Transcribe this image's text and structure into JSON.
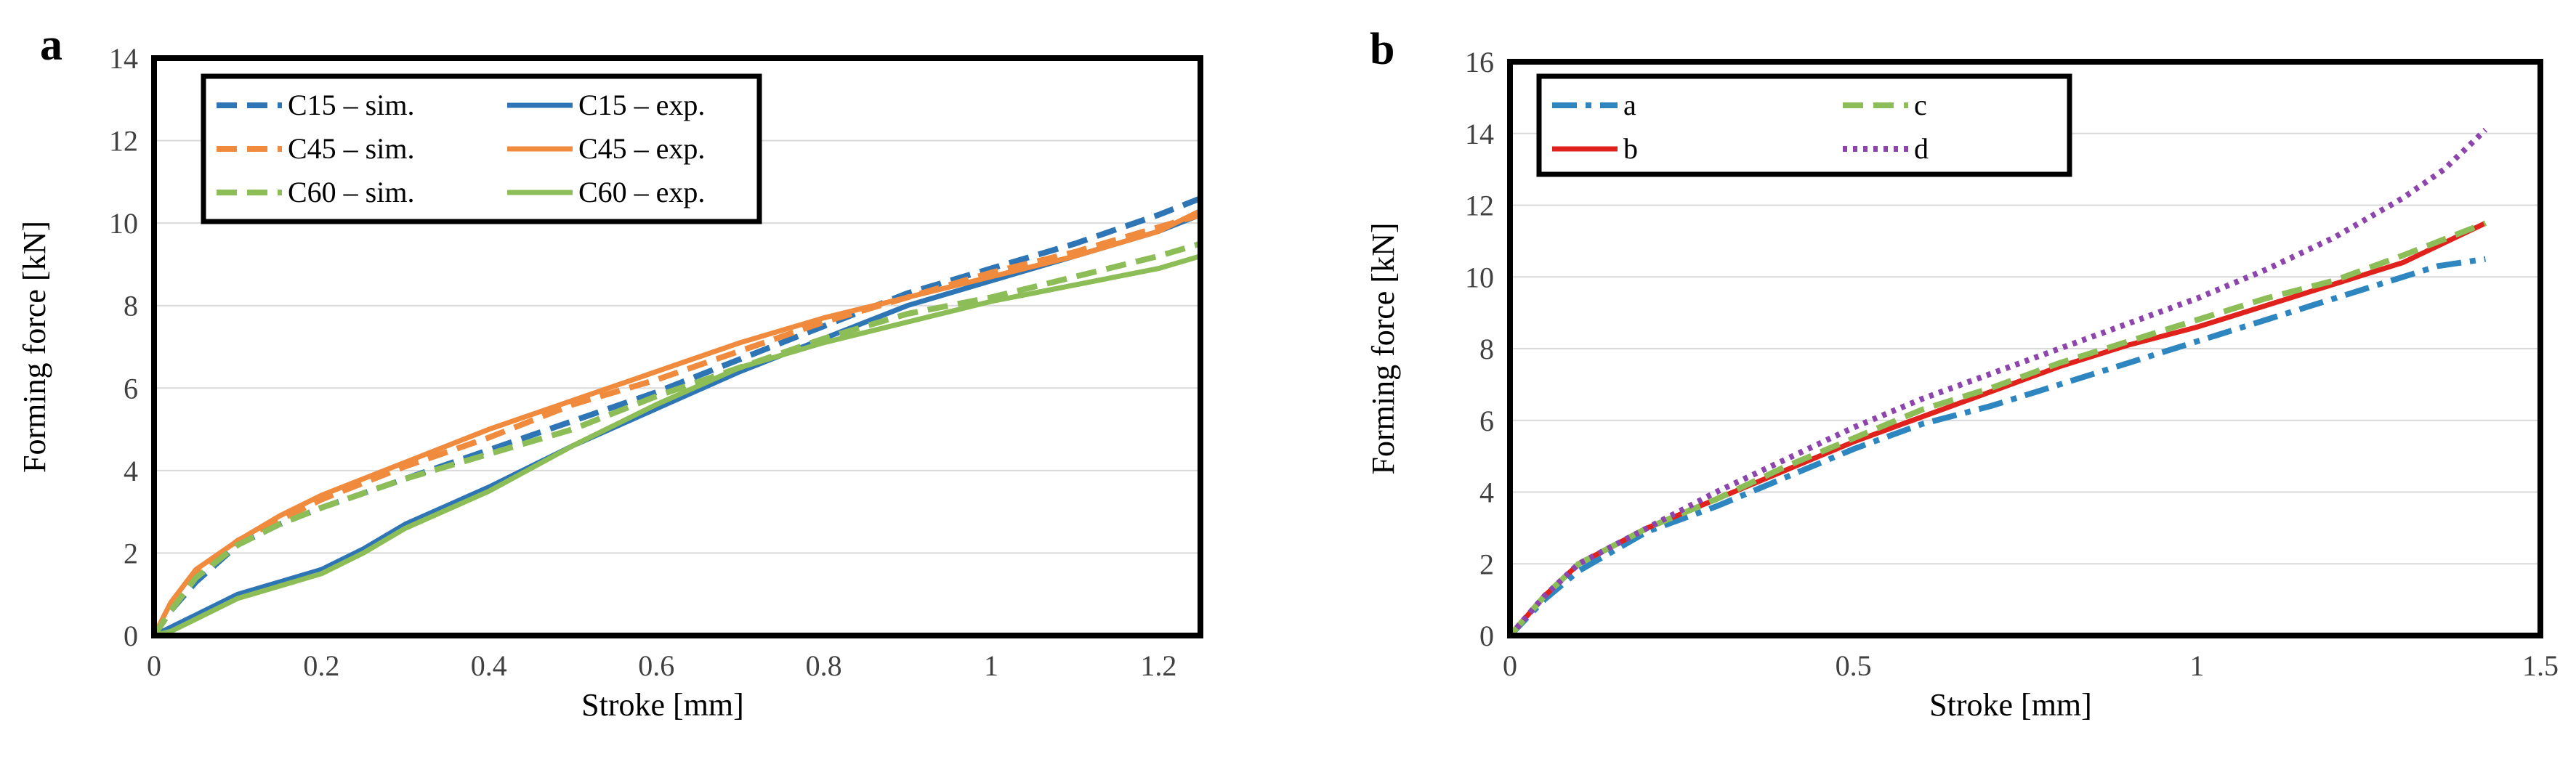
{
  "chart_data": [
    {
      "panel": "a",
      "type": "line",
      "xlabel": "Stroke [mm]",
      "ylabel": "Forming force [kN]",
      "xlim": [
        0,
        1.25
      ],
      "ylim": [
        0,
        14
      ],
      "xticks": [
        0,
        0.2,
        0.4,
        0.6,
        0.8,
        1,
        1.2
      ],
      "xtick_labels": [
        "0",
        "0.2",
        "0.4",
        "0.6",
        "0.8",
        "1",
        "1.2"
      ],
      "yticks": [
        0,
        2,
        4,
        6,
        8,
        10,
        12,
        14
      ],
      "ytick_labels": [
        "0",
        "2",
        "4",
        "6",
        "8",
        "10",
        "12",
        "14"
      ],
      "legend_columns": 2,
      "series": [
        {
          "name": "C15 – sim.",
          "color": "#2e75b6",
          "dash": "dashed",
          "x": [
            0,
            0.02,
            0.05,
            0.1,
            0.15,
            0.2,
            0.3,
            0.4,
            0.5,
            0.6,
            0.7,
            0.8,
            0.9,
            1.0,
            1.1,
            1.2,
            1.25
          ],
          "y": [
            0,
            0.6,
            1.3,
            2.2,
            2.7,
            3.1,
            3.8,
            4.5,
            5.2,
            5.9,
            6.7,
            7.5,
            8.3,
            8.9,
            9.5,
            10.2,
            10.6
          ]
        },
        {
          "name": "C15 – exp.",
          "color": "#2e75b6",
          "dash": "solid",
          "x": [
            0,
            0.02,
            0.05,
            0.1,
            0.15,
            0.2,
            0.25,
            0.3,
            0.4,
            0.5,
            0.6,
            0.7,
            0.8,
            0.9,
            1.0,
            1.1,
            1.2,
            1.25
          ],
          "y": [
            0,
            0.2,
            0.5,
            1.0,
            1.3,
            1.6,
            2.1,
            2.7,
            3.6,
            4.6,
            5.5,
            6.4,
            7.2,
            8.0,
            8.6,
            9.2,
            9.8,
            10.2
          ]
        },
        {
          "name": "C45 – sim.",
          "color": "#f08a3c",
          "dash": "dashed",
          "x": [
            0,
            0.02,
            0.05,
            0.1,
            0.15,
            0.2,
            0.3,
            0.4,
            0.5,
            0.6,
            0.7,
            0.8,
            0.9,
            1.0,
            1.1,
            1.2,
            1.25
          ],
          "y": [
            0,
            0.7,
            1.5,
            2.3,
            2.8,
            3.3,
            4.1,
            4.8,
            5.6,
            6.2,
            6.9,
            7.6,
            8.2,
            8.8,
            9.3,
            9.9,
            10.2
          ]
        },
        {
          "name": "C45 – exp.",
          "color": "#f08a3c",
          "dash": "solid",
          "x": [
            0,
            0.02,
            0.05,
            0.1,
            0.15,
            0.2,
            0.3,
            0.4,
            0.5,
            0.6,
            0.7,
            0.8,
            0.9,
            1.0,
            1.1,
            1.2,
            1.25
          ],
          "y": [
            0,
            0.8,
            1.6,
            2.3,
            2.9,
            3.4,
            4.2,
            5.0,
            5.7,
            6.4,
            7.1,
            7.7,
            8.2,
            8.7,
            9.2,
            9.8,
            10.3
          ]
        },
        {
          "name": "C60 – sim.",
          "color": "#8dbd57",
          "dash": "dashed",
          "x": [
            0,
            0.02,
            0.05,
            0.1,
            0.15,
            0.2,
            0.3,
            0.4,
            0.5,
            0.6,
            0.7,
            0.8,
            0.9,
            1.0,
            1.1,
            1.2,
            1.25
          ],
          "y": [
            0,
            0.6,
            1.4,
            2.2,
            2.7,
            3.1,
            3.8,
            4.4,
            5.0,
            5.8,
            6.5,
            7.2,
            7.8,
            8.2,
            8.7,
            9.2,
            9.5
          ]
        },
        {
          "name": "C60 – exp.",
          "color": "#8dbd57",
          "dash": "solid",
          "x": [
            0,
            0.02,
            0.05,
            0.1,
            0.15,
            0.2,
            0.25,
            0.3,
            0.4,
            0.5,
            0.6,
            0.7,
            0.8,
            0.9,
            1.0,
            1.1,
            1.2,
            1.25
          ],
          "y": [
            0,
            0.1,
            0.4,
            0.9,
            1.2,
            1.5,
            2.0,
            2.6,
            3.5,
            4.6,
            5.6,
            6.5,
            7.1,
            7.6,
            8.1,
            8.5,
            8.9,
            9.2
          ]
        }
      ]
    },
    {
      "panel": "b",
      "type": "line",
      "xlabel": "Stroke [mm]",
      "ylabel": "Forming force [kN]",
      "xlim": [
        0,
        1.5
      ],
      "ylim": [
        0,
        16
      ],
      "xticks": [
        0,
        0.5,
        1,
        1.5
      ],
      "xtick_labels": [
        "0",
        "0.5",
        "1",
        "1.5"
      ],
      "yticks": [
        0,
        2,
        4,
        6,
        8,
        10,
        12,
        14,
        16
      ],
      "ytick_labels": [
        "0",
        "2",
        "4",
        "6",
        "8",
        "10",
        "12",
        "14",
        "16"
      ],
      "legend_columns": 2,
      "series": [
        {
          "name": "a",
          "color": "#2e86c1",
          "dash": "dashdot",
          "x": [
            0,
            0.05,
            0.1,
            0.2,
            0.3,
            0.4,
            0.5,
            0.6,
            0.7,
            0.8,
            0.9,
            1.0,
            1.1,
            1.2,
            1.3,
            1.35,
            1.42
          ],
          "y": [
            0,
            1.0,
            1.8,
            2.9,
            3.6,
            4.4,
            5.2,
            5.9,
            6.4,
            7.0,
            7.6,
            8.2,
            8.8,
            9.4,
            10.0,
            10.3,
            10.5
          ]
        },
        {
          "name": "b",
          "color": "#e0211c",
          "dash": "solid",
          "x": [
            0,
            0.05,
            0.1,
            0.2,
            0.3,
            0.4,
            0.5,
            0.6,
            0.7,
            0.8,
            0.9,
            1.0,
            1.1,
            1.2,
            1.3,
            1.42
          ],
          "y": [
            0,
            1.1,
            2.0,
            3.0,
            3.8,
            4.6,
            5.4,
            6.1,
            6.8,
            7.5,
            8.1,
            8.6,
            9.2,
            9.8,
            10.4,
            11.5
          ]
        },
        {
          "name": "c",
          "color": "#8dbd57",
          "dash": "dashed",
          "x": [
            0,
            0.05,
            0.1,
            0.2,
            0.3,
            0.4,
            0.5,
            0.6,
            0.7,
            0.8,
            0.9,
            1.0,
            1.1,
            1.2,
            1.3,
            1.42
          ],
          "y": [
            0,
            1.1,
            2.0,
            3.0,
            3.8,
            4.7,
            5.5,
            6.3,
            6.9,
            7.6,
            8.2,
            8.8,
            9.4,
            9.9,
            10.6,
            11.5
          ]
        },
        {
          "name": "d",
          "color": "#8e44ad",
          "dash": "dotted",
          "x": [
            0,
            0.05,
            0.1,
            0.2,
            0.3,
            0.4,
            0.5,
            0.6,
            0.7,
            0.8,
            0.9,
            1.0,
            1.1,
            1.2,
            1.3,
            1.36,
            1.42
          ],
          "y": [
            0,
            1.1,
            2.0,
            3.0,
            4.0,
            4.9,
            5.8,
            6.6,
            7.3,
            8.0,
            8.7,
            9.4,
            10.2,
            11.1,
            12.2,
            13.0,
            14.1
          ]
        }
      ]
    }
  ]
}
